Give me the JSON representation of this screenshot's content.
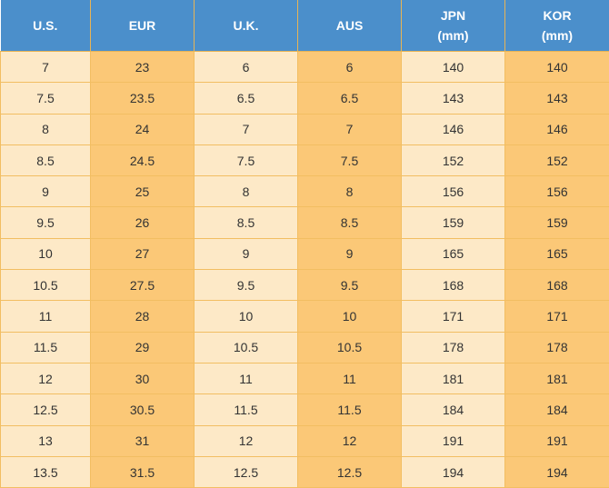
{
  "table": {
    "header": [
      "U.S.",
      "EUR",
      "U.K.",
      "AUS",
      "JPN\n(mm)",
      "KOR\n(mm)"
    ],
    "rows": [
      [
        7,
        23,
        6,
        6,
        140,
        140
      ],
      [
        7.5,
        23.5,
        6.5,
        6.5,
        143,
        143
      ],
      [
        8,
        24,
        7,
        7,
        146,
        146
      ],
      [
        8.5,
        24.5,
        7.5,
        7.5,
        152,
        152
      ],
      [
        9,
        25,
        8,
        8,
        156,
        156
      ],
      [
        9.5,
        26,
        8.5,
        8.5,
        159,
        159
      ],
      [
        10,
        27,
        9,
        9,
        165,
        165
      ],
      [
        10.5,
        27.5,
        9.5,
        9.5,
        168,
        168
      ],
      [
        11,
        28,
        10,
        10,
        171,
        171
      ],
      [
        11.5,
        29,
        10.5,
        10.5,
        178,
        178
      ],
      [
        12,
        30,
        11,
        11,
        181,
        181
      ],
      [
        12.5,
        30.5,
        11.5,
        11.5,
        184,
        184
      ],
      [
        13,
        31,
        12,
        12,
        191,
        191
      ],
      [
        13.5,
        31.5,
        12.5,
        12.5,
        194,
        194
      ]
    ]
  }
}
